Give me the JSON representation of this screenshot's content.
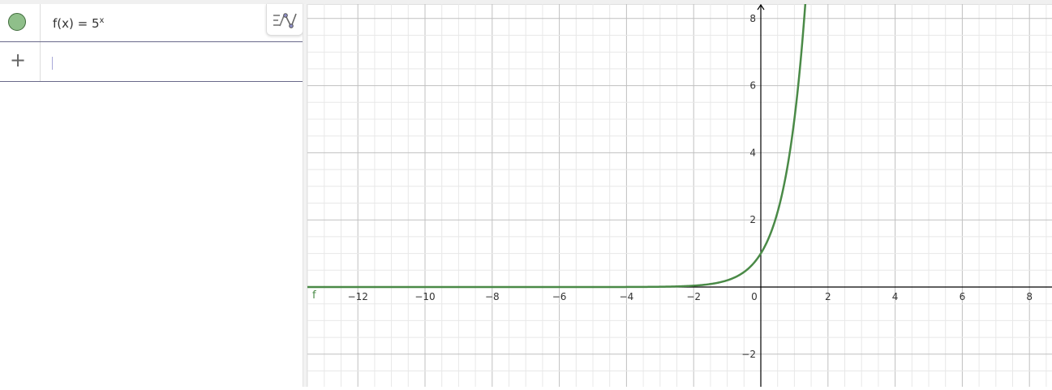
{
  "algebra": {
    "items": [
      {
        "name": "f",
        "lhs": "f(x) = 5",
        "exponent": "x",
        "color": "#8fbf8a"
      }
    ],
    "input_placeholder": ""
  },
  "icons": {
    "marble": "visibility-marble-icon",
    "add": "plus-icon",
    "style_bar": "algebra-style-bar-icon"
  },
  "graphics": {
    "function_label": "f",
    "function_color": "#4a8a47",
    "x_ticks": [
      "−12",
      "−10",
      "−8",
      "−6",
      "−4",
      "−2",
      "0",
      "2",
      "4",
      "6",
      "8"
    ],
    "y_ticks": [
      "−2",
      "2",
      "4",
      "6",
      "8"
    ]
  },
  "chart_data": {
    "type": "line",
    "function": "f(x) = 5^x",
    "xlim": [
      -13.5,
      8.7
    ],
    "ylim": [
      -2.95,
      8.45
    ],
    "x_tick_values": [
      -12,
      -10,
      -8,
      -6,
      -4,
      -2,
      0,
      2,
      4,
      6,
      8
    ],
    "y_tick_values": [
      -2,
      2,
      4,
      6,
      8
    ],
    "grid": "major every 2, minor every 0.5",
    "series": [
      {
        "name": "f",
        "expression": "5^x"
      }
    ]
  }
}
